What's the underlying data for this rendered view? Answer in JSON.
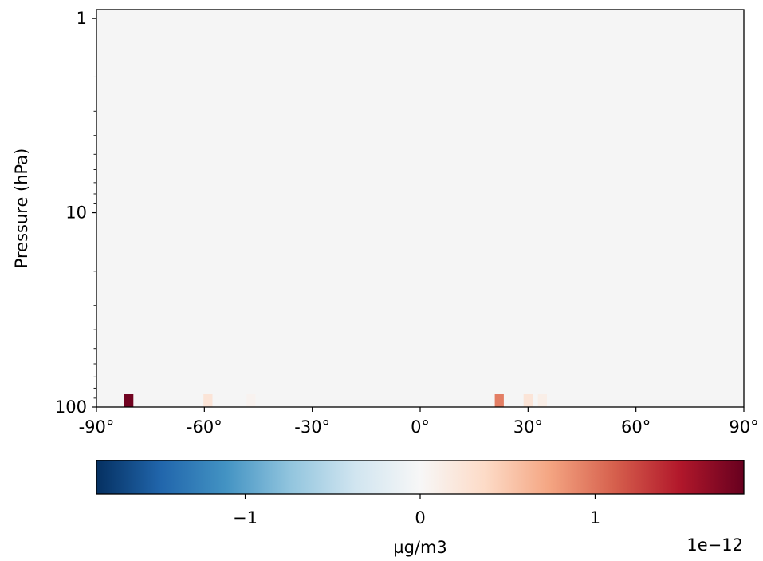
{
  "chart_data": {
    "type": "heatmap",
    "title": "",
    "xlabel": "",
    "ylabel": "Pressure (hPa)",
    "x_range": [
      -90,
      90
    ],
    "y_range_hPa": [
      100,
      0.9
    ],
    "y_scale": "log",
    "y_inverted": true,
    "x_ticks": [
      {
        "value": -90,
        "label": "-90°"
      },
      {
        "value": -60,
        "label": "-60°"
      },
      {
        "value": -30,
        "label": "-30°"
      },
      {
        "value": 0,
        "label": "0°"
      },
      {
        "value": 30,
        "label": "30°"
      },
      {
        "value": 60,
        "label": "60°"
      },
      {
        "value": 90,
        "label": "90°"
      }
    ],
    "y_ticks": [
      {
        "value": 1,
        "label": "1"
      },
      {
        "value": 10,
        "label": "10"
      },
      {
        "value": 100,
        "label": "100"
      }
    ],
    "background_value": 0,
    "colormap": "RdBu_r",
    "cells": [
      {
        "lat": -81,
        "lev": 100,
        "value": 1.8e-12
      },
      {
        "lat": -59,
        "lev": 100,
        "value": 2.5e-13
      },
      {
        "lat": -47,
        "lev": 100,
        "value": 6e-14
      },
      {
        "lat": 22,
        "lev": 100,
        "value": 9.5e-13
      },
      {
        "lat": 30,
        "lev": 100,
        "value": 2.5e-13
      },
      {
        "lat": 34,
        "lev": 100,
        "value": 1.2e-13
      }
    ],
    "colorbar": {
      "label": "µg/m3",
      "range": [
        -1.85e-12,
        1.85e-12
      ],
      "ticks": [
        {
          "value": -1,
          "label": "−1"
        },
        {
          "value": 0,
          "label": "0"
        },
        {
          "value": 1,
          "label": "1"
        }
      ],
      "scale_label": "1e−12"
    }
  }
}
